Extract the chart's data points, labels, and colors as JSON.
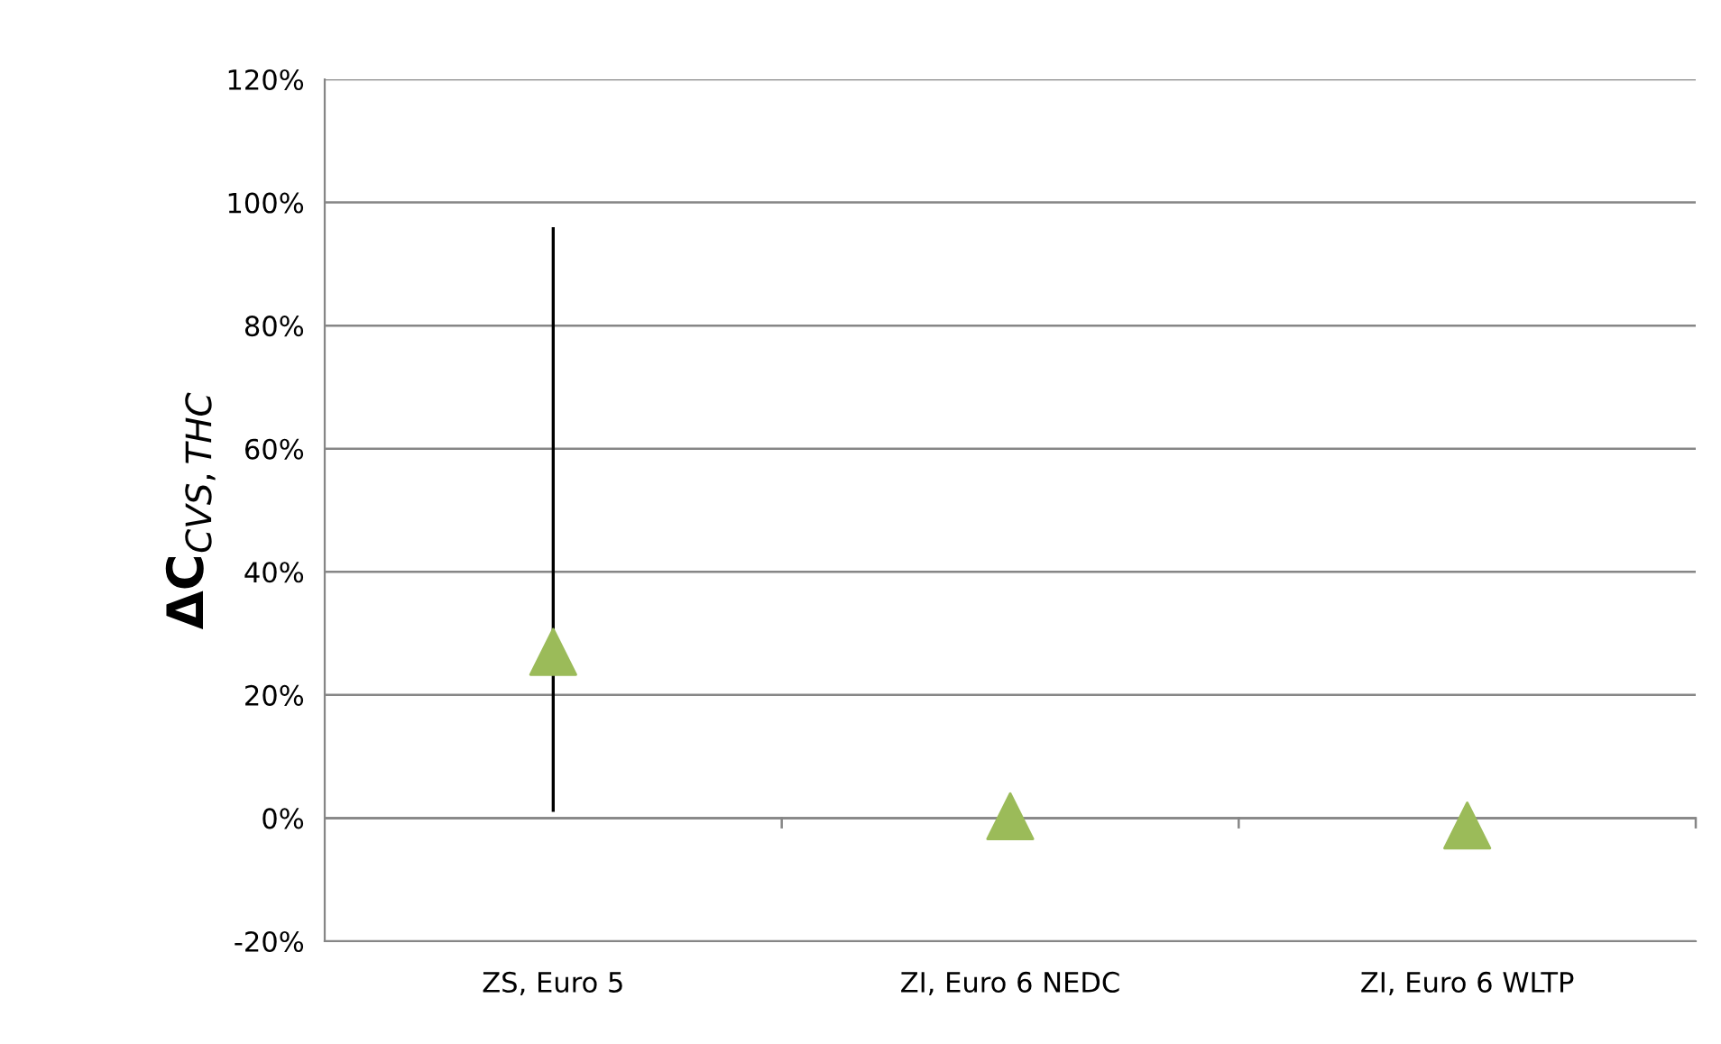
{
  "chart_data": {
    "type": "scatter",
    "ylabel": "ΔC$_{CVS,THC}$",
    "categories": [
      "ZS, Euro 5",
      "ZI, Euro 6 NEDC",
      "ZI, Euro 6 WLTP"
    ],
    "series": [
      {
        "color": "#9bbb59",
        "values": [
          27,
          0.3,
          -1.2
        ],
        "errors": [
          [
            1,
            96
          ],
          null,
          null
        ]
      }
    ],
    "marker": "triangle",
    "ylim": [
      -20,
      120
    ],
    "yticks": [
      {
        "value": -20,
        "label": "-20%"
      },
      {
        "value": 0,
        "label": "0%"
      },
      {
        "value": 20,
        "label": "20%"
      },
      {
        "value": 40,
        "label": "40%"
      },
      {
        "value": 60,
        "label": "60%"
      },
      {
        "value": 80,
        "label": "80%"
      },
      {
        "value": 100,
        "label": "100%"
      },
      {
        "value": 120,
        "label": "120%"
      }
    ],
    "grid": "y",
    "legend": false
  }
}
